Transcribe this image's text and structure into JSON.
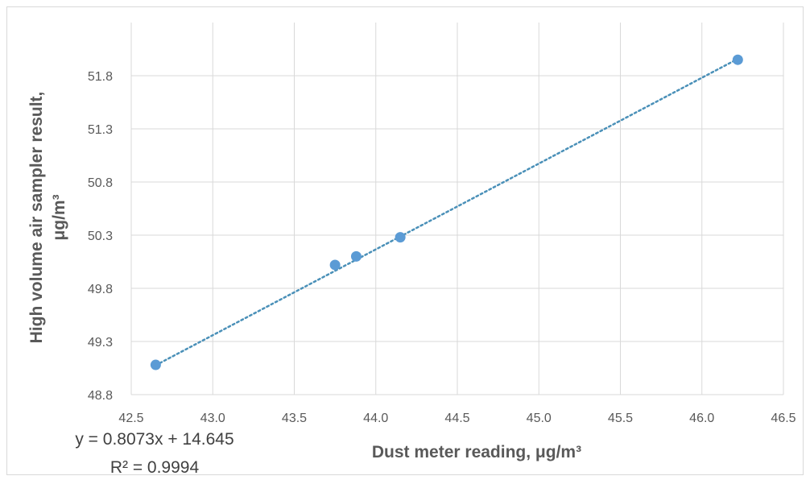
{
  "chart_data": {
    "type": "scatter",
    "xlabel": "Dust meter reading, μg/m³",
    "ylabel_lines": [
      "High volume air sampler result,",
      "μg/m³"
    ],
    "xlim": [
      42.5,
      46.5
    ],
    "ylim": [
      48.8,
      52.1
    ],
    "x_ticks": [
      "42.5",
      "43.0",
      "43.5",
      "44.0",
      "44.5",
      "45.0",
      "45.5",
      "46.0",
      "46.5"
    ],
    "y_ticks": [
      "48.8",
      "49.3",
      "49.8",
      "50.3",
      "50.8",
      "51.3",
      "51.8"
    ],
    "grid": true,
    "points": [
      {
        "x": 42.65,
        "y": 49.08
      },
      {
        "x": 43.75,
        "y": 50.02
      },
      {
        "x": 43.88,
        "y": 50.1
      },
      {
        "x": 44.15,
        "y": 50.28
      },
      {
        "x": 46.22,
        "y": 51.95
      }
    ],
    "trendline": {
      "type": "linear",
      "slope": 0.8073,
      "intercept": 14.645,
      "style": "dotted"
    },
    "equation": "y = 0.8073x + 14.645",
    "r_squared": "R² = 0.9994",
    "colors": {
      "points": "#5b9bd5",
      "trendline": "#4a90b8",
      "grid": "#d9d9d9"
    }
  }
}
